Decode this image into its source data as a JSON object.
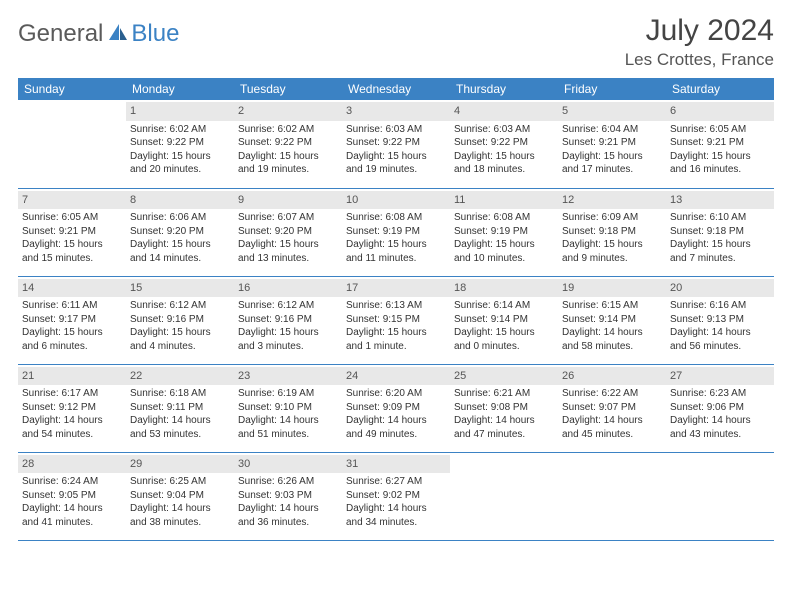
{
  "brand": {
    "part1": "General",
    "part2": "Blue"
  },
  "title": "July 2024",
  "location": "Les Crottes, France",
  "colors": {
    "header_bg": "#3b82c4",
    "header_fg": "#ffffff",
    "daynum_bg": "#e8e8e8",
    "border": "#3b82c4",
    "logo_gray": "#5a5a5a",
    "logo_blue": "#3b82c4"
  },
  "weekdays": [
    "Sunday",
    "Monday",
    "Tuesday",
    "Wednesday",
    "Thursday",
    "Friday",
    "Saturday"
  ],
  "weeks": [
    [
      null,
      {
        "n": "1",
        "sr": "6:02 AM",
        "ss": "9:22 PM",
        "dl": "15 hours and 20 minutes."
      },
      {
        "n": "2",
        "sr": "6:02 AM",
        "ss": "9:22 PM",
        "dl": "15 hours and 19 minutes."
      },
      {
        "n": "3",
        "sr": "6:03 AM",
        "ss": "9:22 PM",
        "dl": "15 hours and 19 minutes."
      },
      {
        "n": "4",
        "sr": "6:03 AM",
        "ss": "9:22 PM",
        "dl": "15 hours and 18 minutes."
      },
      {
        "n": "5",
        "sr": "6:04 AM",
        "ss": "9:21 PM",
        "dl": "15 hours and 17 minutes."
      },
      {
        "n": "6",
        "sr": "6:05 AM",
        "ss": "9:21 PM",
        "dl": "15 hours and 16 minutes."
      }
    ],
    [
      {
        "n": "7",
        "sr": "6:05 AM",
        "ss": "9:21 PM",
        "dl": "15 hours and 15 minutes."
      },
      {
        "n": "8",
        "sr": "6:06 AM",
        "ss": "9:20 PM",
        "dl": "15 hours and 14 minutes."
      },
      {
        "n": "9",
        "sr": "6:07 AM",
        "ss": "9:20 PM",
        "dl": "15 hours and 13 minutes."
      },
      {
        "n": "10",
        "sr": "6:08 AM",
        "ss": "9:19 PM",
        "dl": "15 hours and 11 minutes."
      },
      {
        "n": "11",
        "sr": "6:08 AM",
        "ss": "9:19 PM",
        "dl": "15 hours and 10 minutes."
      },
      {
        "n": "12",
        "sr": "6:09 AM",
        "ss": "9:18 PM",
        "dl": "15 hours and 9 minutes."
      },
      {
        "n": "13",
        "sr": "6:10 AM",
        "ss": "9:18 PM",
        "dl": "15 hours and 7 minutes."
      }
    ],
    [
      {
        "n": "14",
        "sr": "6:11 AM",
        "ss": "9:17 PM",
        "dl": "15 hours and 6 minutes."
      },
      {
        "n": "15",
        "sr": "6:12 AM",
        "ss": "9:16 PM",
        "dl": "15 hours and 4 minutes."
      },
      {
        "n": "16",
        "sr": "6:12 AM",
        "ss": "9:16 PM",
        "dl": "15 hours and 3 minutes."
      },
      {
        "n": "17",
        "sr": "6:13 AM",
        "ss": "9:15 PM",
        "dl": "15 hours and 1 minute."
      },
      {
        "n": "18",
        "sr": "6:14 AM",
        "ss": "9:14 PM",
        "dl": "15 hours and 0 minutes."
      },
      {
        "n": "19",
        "sr": "6:15 AM",
        "ss": "9:14 PM",
        "dl": "14 hours and 58 minutes."
      },
      {
        "n": "20",
        "sr": "6:16 AM",
        "ss": "9:13 PM",
        "dl": "14 hours and 56 minutes."
      }
    ],
    [
      {
        "n": "21",
        "sr": "6:17 AM",
        "ss": "9:12 PM",
        "dl": "14 hours and 54 minutes."
      },
      {
        "n": "22",
        "sr": "6:18 AM",
        "ss": "9:11 PM",
        "dl": "14 hours and 53 minutes."
      },
      {
        "n": "23",
        "sr": "6:19 AM",
        "ss": "9:10 PM",
        "dl": "14 hours and 51 minutes."
      },
      {
        "n": "24",
        "sr": "6:20 AM",
        "ss": "9:09 PM",
        "dl": "14 hours and 49 minutes."
      },
      {
        "n": "25",
        "sr": "6:21 AM",
        "ss": "9:08 PM",
        "dl": "14 hours and 47 minutes."
      },
      {
        "n": "26",
        "sr": "6:22 AM",
        "ss": "9:07 PM",
        "dl": "14 hours and 45 minutes."
      },
      {
        "n": "27",
        "sr": "6:23 AM",
        "ss": "9:06 PM",
        "dl": "14 hours and 43 minutes."
      }
    ],
    [
      {
        "n": "28",
        "sr": "6:24 AM",
        "ss": "9:05 PM",
        "dl": "14 hours and 41 minutes."
      },
      {
        "n": "29",
        "sr": "6:25 AM",
        "ss": "9:04 PM",
        "dl": "14 hours and 38 minutes."
      },
      {
        "n": "30",
        "sr": "6:26 AM",
        "ss": "9:03 PM",
        "dl": "14 hours and 36 minutes."
      },
      {
        "n": "31",
        "sr": "6:27 AM",
        "ss": "9:02 PM",
        "dl": "14 hours and 34 minutes."
      },
      null,
      null,
      null
    ]
  ],
  "labels": {
    "sunrise": "Sunrise:",
    "sunset": "Sunset:",
    "daylight": "Daylight:"
  }
}
